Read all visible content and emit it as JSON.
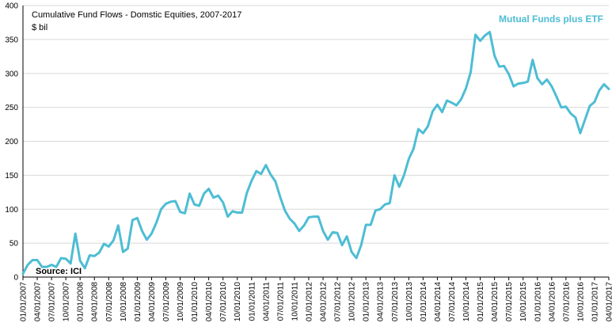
{
  "chart_data": {
    "type": "line",
    "title": "Cumulative Fund Flows - Domstic Equities, 2007-2017",
    "subtitle": "$ bil",
    "source": "Source: ICI",
    "xlabel": "",
    "ylabel": "",
    "ylim": [
      0,
      400
    ],
    "y_ticks": [
      0,
      50,
      100,
      150,
      200,
      250,
      300,
      350,
      400
    ],
    "grid": true,
    "legend_position": "top-right",
    "x_tick_labels": [
      "01/01/2007",
      "04/01/2007",
      "07/01/2007",
      "10/01/2007",
      "01/01/2008",
      "04/01/2008",
      "07/01/2008",
      "10/01/2008",
      "01/01/2009",
      "04/01/2009",
      "07/01/2009",
      "10/01/2009",
      "01/01/2010",
      "04/01/2010",
      "07/01/2010",
      "10/01/2010",
      "01/01/2011",
      "04/01/2011",
      "07/01/2011",
      "10/01/2011",
      "01/01/2012",
      "04/01/2012",
      "07/01/2012",
      "10/01/2012",
      "01/01/2013",
      "04/01/2013",
      "07/01/2013",
      "10/01/2013",
      "01/01/2014",
      "04/01/2014",
      "07/01/2014",
      "10/01/2014",
      "01/01/2015",
      "04/01/2015",
      "07/01/2015",
      "10/01/2015",
      "01/01/2016",
      "04/01/2016",
      "07/01/2016",
      "10/01/2016",
      "01/01/2017",
      "04/01/2017"
    ],
    "series": [
      {
        "name": "Mutual Funds plus ETF",
        "color": "#4dbdd4",
        "x_start": "01/01/2007",
        "frequency": "monthly",
        "values": [
          5,
          18,
          25,
          25,
          15,
          15,
          18,
          15,
          28,
          27,
          20,
          64,
          24,
          13,
          32,
          31,
          36,
          49,
          45,
          54,
          76,
          37,
          42,
          84,
          87,
          68,
          55,
          64,
          80,
          100,
          108,
          111,
          112,
          96,
          94,
          123,
          107,
          105,
          123,
          130,
          117,
          120,
          110,
          89,
          97,
          95,
          95,
          124,
          142,
          156,
          152,
          165,
          151,
          141,
          118,
          98,
          86,
          79,
          68,
          76,
          88,
          89,
          89,
          68,
          55,
          66,
          65,
          47,
          60,
          37,
          28,
          47,
          77,
          77,
          98,
          100,
          107,
          109,
          150,
          133,
          150,
          174,
          189,
          218,
          212,
          222,
          244,
          254,
          243,
          260,
          257,
          253,
          262,
          278,
          302,
          357,
          348,
          356,
          361,
          326,
          310,
          311,
          299,
          281,
          285,
          286,
          288,
          320,
          293,
          284,
          291,
          281,
          266,
          250,
          251,
          241,
          235,
          212,
          232,
          252,
          258,
          275,
          284,
          277
        ]
      }
    ]
  }
}
